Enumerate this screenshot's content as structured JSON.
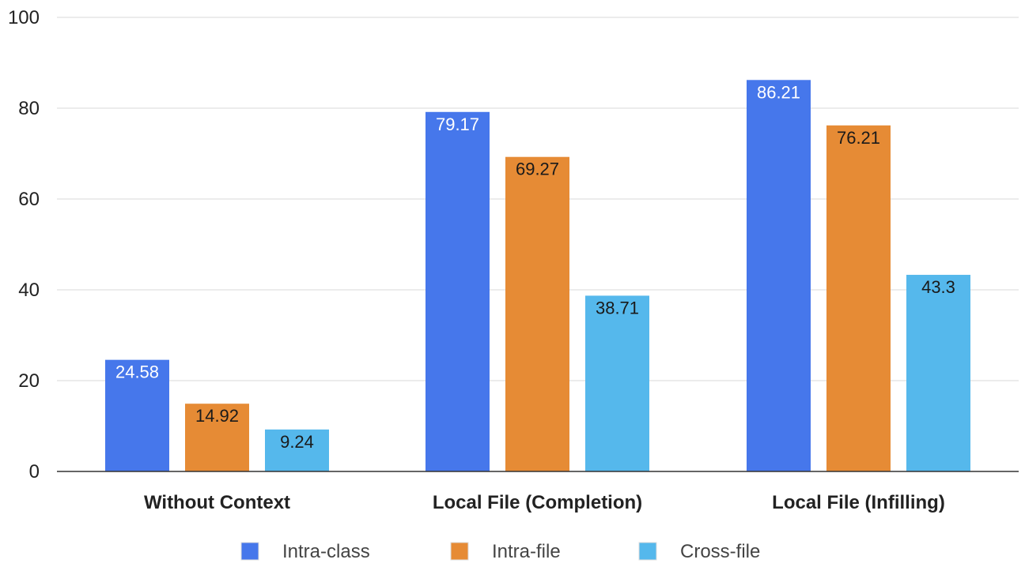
{
  "chart_data": {
    "type": "bar",
    "categories": [
      "Without Context",
      "Local File (Completion)",
      "Local File (Infilling)"
    ],
    "series": [
      {
        "name": "Intra-class",
        "values": [
          24.58,
          79.17,
          86.21
        ],
        "color": "#4677EB",
        "label_color": "#ffffff"
      },
      {
        "name": "Intra-file",
        "values": [
          14.92,
          69.27,
          76.21
        ],
        "color": "#E68B35",
        "label_color": "#1a1a1a"
      },
      {
        "name": "Cross-file",
        "values": [
          9.24,
          38.71,
          43.3
        ],
        "color": "#55B8EC",
        "label_color": "#1a1a1a"
      }
    ],
    "ylim": [
      0,
      100
    ],
    "yticks": [
      0,
      20,
      40,
      60,
      80,
      100
    ],
    "grid": true,
    "legend_position": "bottom",
    "title": "",
    "xlabel": "",
    "ylabel": ""
  }
}
